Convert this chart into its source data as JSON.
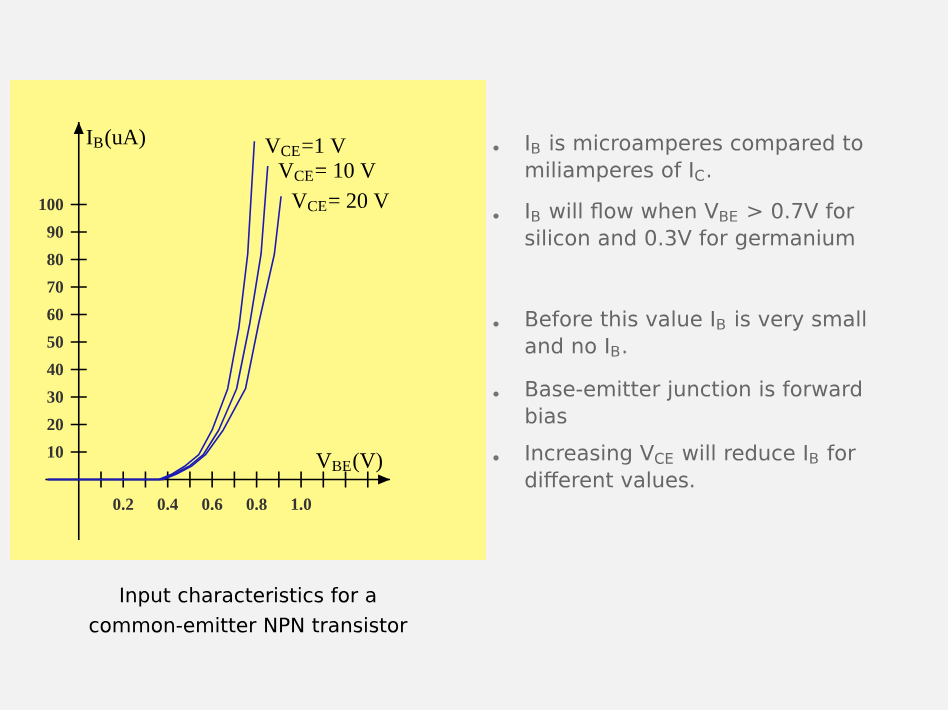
{
  "chart_data": {
    "type": "line",
    "xlabel": "V$_{BE}$(V)",
    "ylabel": "I$_{B}$(uA)",
    "xlim": [
      -0.15,
      1.4
    ],
    "ylim": [
      -22,
      130
    ],
    "xticks": [
      {
        "value": 0.1,
        "label": null
      },
      0.2,
      {
        "value": 0.3,
        "label": null
      },
      0.4,
      {
        "value": 0.5,
        "label": null
      },
      0.6,
      {
        "value": 0.7,
        "label": null
      },
      0.8,
      {
        "value": 0.9,
        "label": null
      },
      {
        "value": 1,
        "label": "1.0"
      },
      {
        "value": 1.1,
        "label": null
      },
      {
        "value": 1.2,
        "label": null
      },
      {
        "value": 1.3,
        "label": null
      }
    ],
    "yticks": [
      10,
      20,
      30,
      40,
      50,
      60,
      70,
      80,
      90,
      100
    ],
    "marker": "none",
    "line_style": "solid",
    "annotations": [
      "Input characteristics for a common-emitter NPN transistor",
      "I$_{B}$ is microamperes compared to miliamperes of I$_{C}$.",
      "I$_{B}$ will flow when V$_{BE}$ > 0.7V for silicon and 0.3V for germanium",
      "Before this value I$_{B}$ is very small and no I$_{B}$.",
      "Base-emitter junction is forward bias",
      "Increasing V$_{CE}$ will reduce I$_{B}$ for different values."
    ],
    "series": [
      {
        "name": "V$_{CE}$=1 V",
        "color": "#1c1cb4",
        "x": [
          -0.14,
          0.36,
          0.42,
          0.48,
          0.54,
          0.6,
          0.67,
          0.72,
          0.76,
          0.79
        ],
        "values": [
          0,
          0,
          2,
          5,
          9,
          18,
          33,
          55,
          82,
          123
        ]
      },
      {
        "name": "V$_{CE}$= 10 V",
        "color": "#1c1cb4",
        "x": [
          -0.14,
          0.37,
          0.43,
          0.5,
          0.56,
          0.63,
          0.71,
          0.77,
          0.82,
          0.85
        ],
        "values": [
          0,
          0,
          2,
          5,
          9,
          18,
          33,
          57,
          82,
          114
        ]
      },
      {
        "name": "V$_{CE}$= 20 V",
        "color": "#1c1cb4",
        "x": [
          -0.14,
          0.38,
          0.44,
          0.51,
          0.57,
          0.65,
          0.75,
          0.81,
          0.88,
          0.91
        ],
        "values": [
          0,
          0,
          2,
          5,
          9,
          18,
          33,
          57,
          82,
          103
        ]
      }
    ]
  }
}
